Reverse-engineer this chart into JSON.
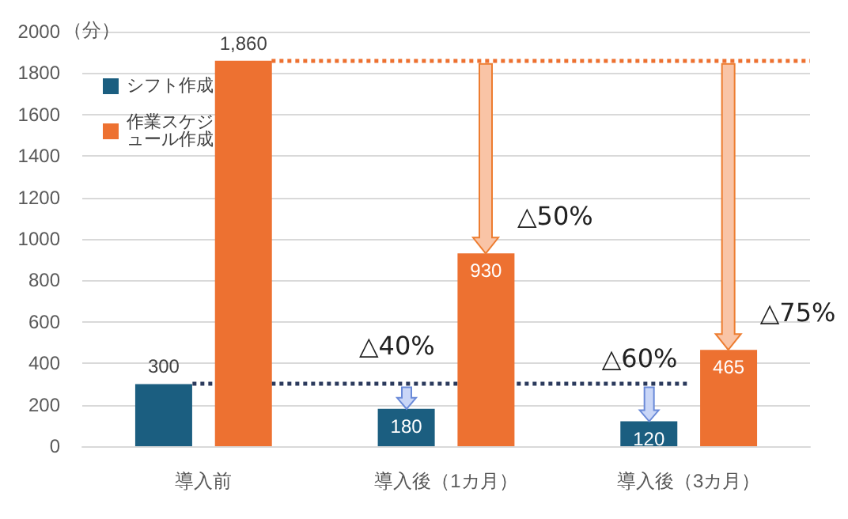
{
  "chart_data": {
    "type": "bar",
    "ylabel": "（分）",
    "categories": [
      "導入前",
      "導入後（1カ月）",
      "導入後（3カ月）"
    ],
    "series": [
      {
        "name": "シフト作成",
        "color": "#1b5e80",
        "values": [
          300,
          180,
          120
        ],
        "value_labels": [
          "300",
          "180",
          "120"
        ]
      },
      {
        "name": "作業スケジュール作成",
        "color": "#ed7131",
        "values": [
          1860,
          930,
          465
        ],
        "value_labels": [
          "1,860",
          "930",
          "465"
        ]
      }
    ],
    "ylim": [
      0,
      2000
    ],
    "yticks": [
      0,
      200,
      400,
      600,
      800,
      1000,
      1200,
      1400,
      1600,
      1800,
      2000
    ],
    "grid": "y",
    "legend": "top left",
    "ref_lines": [
      {
        "axis": "y",
        "value": 300,
        "color": "#2b3a5c",
        "line_style": "dotted"
      },
      {
        "axis": "y",
        "value": 1860,
        "color": "#ed7131",
        "line_style": "dotted"
      }
    ],
    "annotations": [
      "△40%",
      "△50%",
      "△60%",
      "△75%"
    ]
  }
}
